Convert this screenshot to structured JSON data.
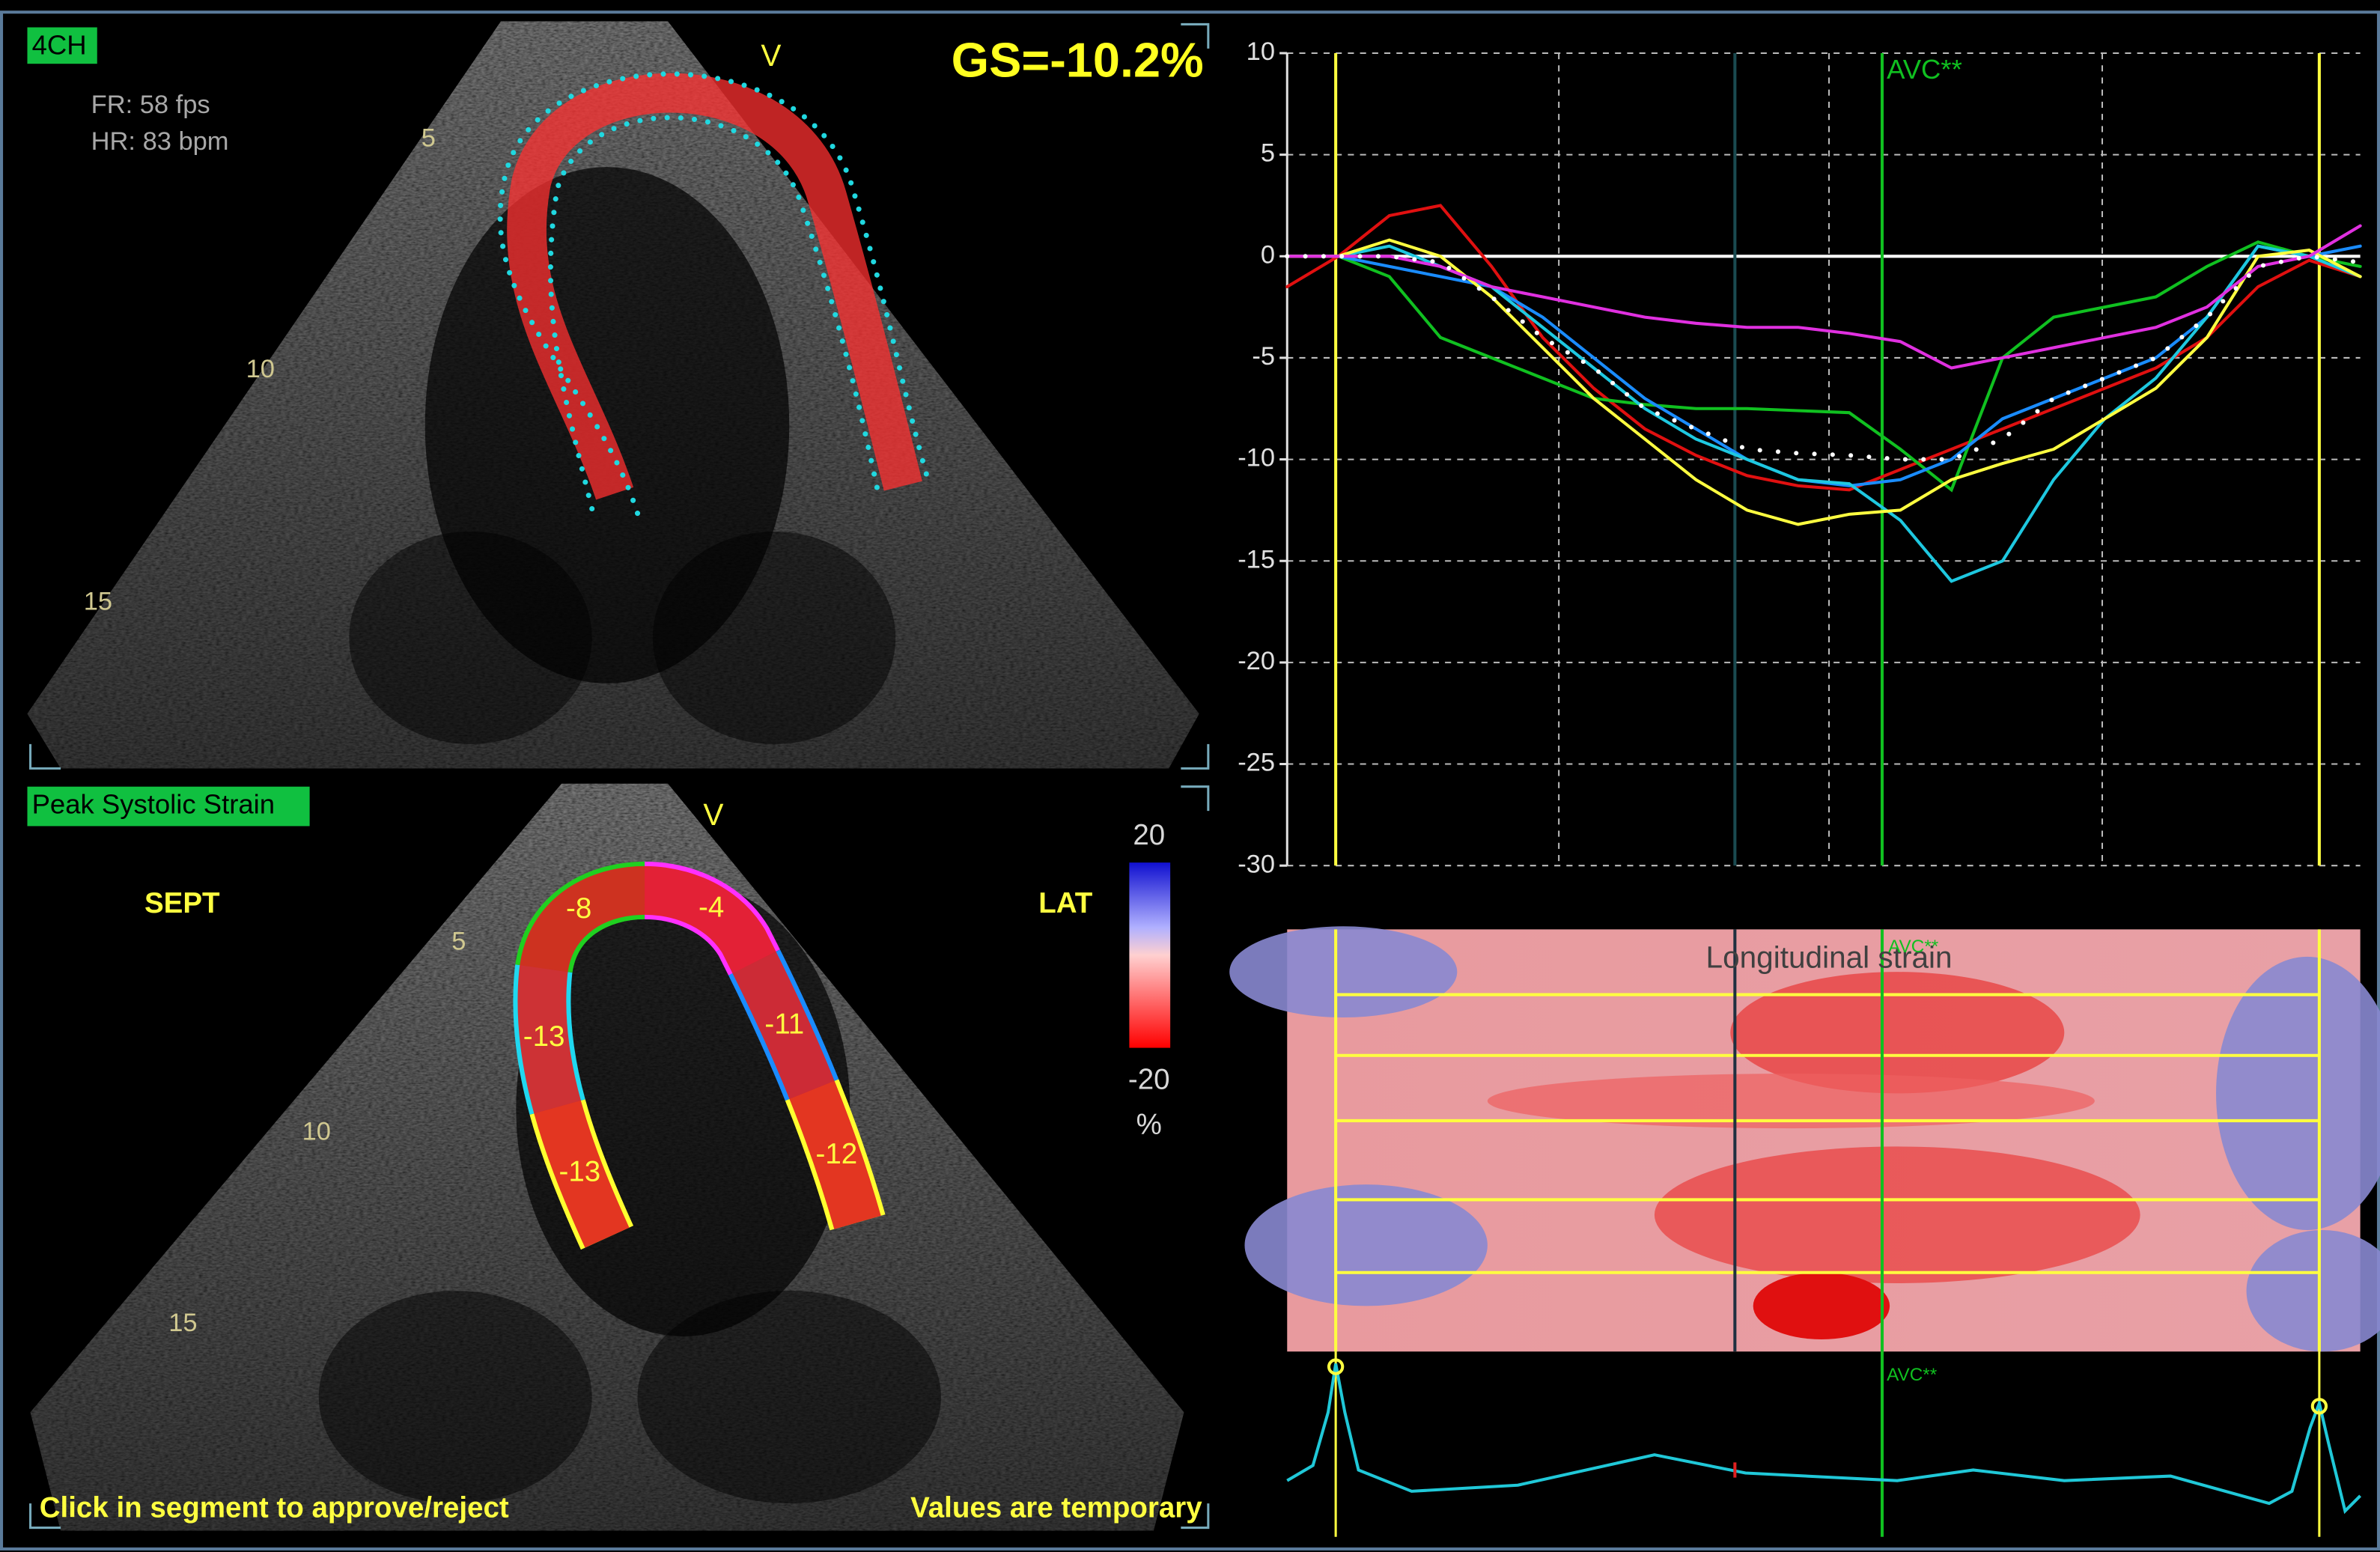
{
  "top_panel": {
    "view": "4CH",
    "frame_rate": "FR: 58 fps",
    "heart_rate": "HR: 83 bpm",
    "marker": "V",
    "global_strain": "GS=-10.2%",
    "depth_labels": [
      5,
      10,
      15
    ]
  },
  "bottom_panel": {
    "title": "Peak Systolic Strain",
    "marker": "V",
    "left_label": "SEPT",
    "right_label": "LAT",
    "depth_labels": [
      5,
      10,
      15
    ],
    "segments": [
      {
        "value": -13,
        "color": "#ffff30"
      },
      {
        "value": -13,
        "color": "#20d8f0"
      },
      {
        "value": -8,
        "color": "#20d020"
      },
      {
        "value": -4,
        "color": "#ff30ff"
      },
      {
        "value": -11,
        "color": "#1a8cff"
      },
      {
        "value": -12,
        "color": "#ffff30"
      }
    ],
    "color_scale": {
      "max": 20,
      "min": -20,
      "unit": "%"
    },
    "footer_left": "Click in segment to approve/reject",
    "footer_right": "Values are temporary"
  },
  "chart_data": {
    "type": "line",
    "annotation": "AVC**",
    "categories": [
      null,
      null,
      null,
      null,
      null,
      null,
      null,
      null,
      null,
      null,
      null,
      null,
      null,
      null,
      null,
      null,
      null,
      null,
      null,
      null,
      null,
      null
    ],
    "series": [
      {
        "color": "#e01010",
        "values": [
          -1.5,
          0,
          2,
          2.5,
          -0.5,
          -4,
          -6.5,
          -8.5,
          -9.8,
          -10.8,
          -11.3,
          -11.5,
          -10.5,
          -9.5,
          -8.5,
          -7.5,
          -6.5,
          -5.5,
          -4,
          -1.5,
          -0.2,
          -1
        ]
      },
      {
        "color": "#10c020",
        "values": [
          0,
          0,
          -1,
          -4,
          -5,
          -6,
          -7,
          -7.3,
          -7.5,
          -7.5,
          -7.6,
          -7.7,
          -9.5,
          -11.5,
          -5,
          -3,
          -2.5,
          -2,
          -0.5,
          0.7,
          0,
          -0.5
        ]
      },
      {
        "color": "#1a8cff",
        "values": [
          0,
          0,
          -0.5,
          -1,
          -1.5,
          -3,
          -5,
          -7,
          -8.5,
          -10,
          -11,
          -11.3,
          -11,
          -10,
          -8,
          -7,
          -6,
          -5,
          -3,
          0.5,
          0,
          0.5
        ]
      },
      {
        "color": "#1ec8e0",
        "values": [
          0,
          0,
          0.5,
          -0.5,
          -1.5,
          -3.5,
          -5.5,
          -7.5,
          -9,
          -10,
          -11,
          -11.2,
          -13,
          -16,
          -15,
          -11,
          -8,
          -6,
          -3,
          0.5,
          0,
          -1
        ]
      },
      {
        "color": "#ffff40",
        "values": [
          0,
          0,
          0.8,
          0,
          -2,
          -4.5,
          -7,
          -9,
          -11,
          -12.5,
          -13.2,
          -12.7,
          -12.5,
          -11,
          -10.2,
          -9.5,
          -8,
          -6.5,
          -4,
          0,
          0.3,
          -1
        ]
      },
      {
        "color": "#e030e0",
        "values": [
          0,
          0,
          0,
          -0.5,
          -1.5,
          -2,
          -2.5,
          -3,
          -3.3,
          -3.5,
          -3.5,
          -3.8,
          -4.2,
          -5.5,
          -5,
          -4.5,
          -4,
          -3.5,
          -2.5,
          -0.5,
          0,
          1.5
        ]
      },
      {
        "color": "#ffffff",
        "line_style": "dotted",
        "values": [
          0,
          0,
          0,
          -0.3,
          -2,
          -4,
          -5.5,
          -7.5,
          -8.5,
          -9.5,
          -9.7,
          -9.8,
          -10,
          -10,
          -9,
          -7,
          -6,
          -5,
          -3,
          -0.5,
          0,
          -0.3
        ]
      }
    ],
    "ylim": [
      -30,
      10
    ],
    "yticks": [
      10,
      5,
      0,
      -5,
      -10,
      -15,
      -20,
      -25,
      -30
    ],
    "grid": true
  },
  "strain_map": {
    "title": "Longitudinal strain",
    "annotation": "AVC**"
  },
  "ecg": {
    "annotation": "AVC**"
  }
}
